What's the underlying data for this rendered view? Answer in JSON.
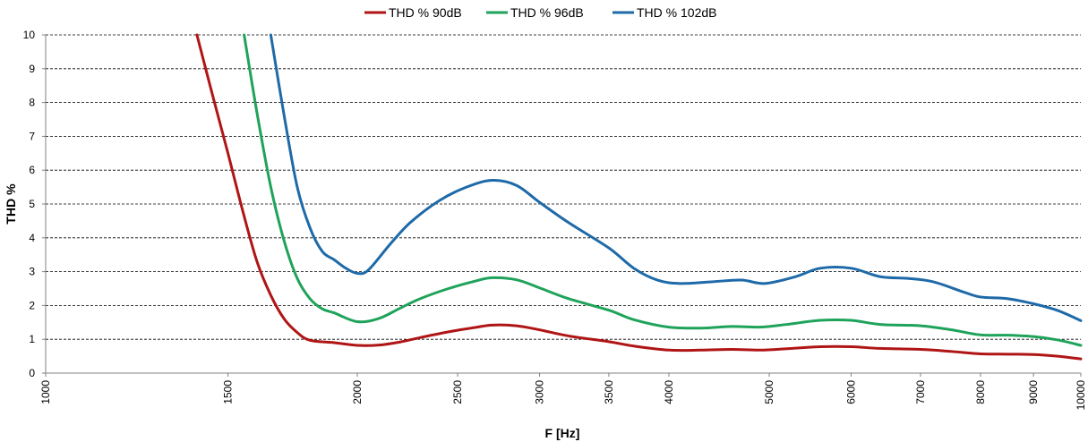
{
  "chart_data": {
    "type": "line",
    "xlabel": "F [Hz]",
    "ylabel": "THD %",
    "x_scale": "log",
    "xlim": [
      1000,
      10000
    ],
    "ylim": [
      0,
      10
    ],
    "y_ticks": [
      "0",
      "1",
      "2",
      "3",
      "4",
      "5",
      "6",
      "7",
      "8",
      "9",
      "10"
    ],
    "x_ticks": [
      {
        "value": 1000,
        "label": "1000"
      },
      {
        "value": 1500,
        "label": "1500"
      },
      {
        "value": 2000,
        "label": "2000"
      },
      {
        "value": 2500,
        "label": "2500"
      },
      {
        "value": 3000,
        "label": "3000"
      },
      {
        "value": 3500,
        "label": "3500"
      },
      {
        "value": 4000,
        "label": "4000"
      },
      {
        "value": 5000,
        "label": "5000"
      },
      {
        "value": 6000,
        "label": "6000"
      },
      {
        "value": 7000,
        "label": "7000"
      },
      {
        "value": 8000,
        "label": "8000"
      },
      {
        "value": 9000,
        "label": "9000"
      },
      {
        "value": 10000,
        "label": "10000"
      }
    ],
    "grid": {
      "horizontal": true,
      "vertical": false,
      "style": "dashed"
    },
    "legend_position": "top",
    "series": [
      {
        "name": "THD % 90dB",
        "color": "#b01515",
        "x": [
          1400,
          1450,
          1500,
          1550,
          1600,
          1650,
          1700,
          1750,
          1800,
          1900,
          2000,
          2100,
          2200,
          2300,
          2450,
          2600,
          2700,
          2850,
          3000,
          3200,
          3500,
          3700,
          4000,
          4300,
          4600,
          4900,
          5200,
          5600,
          6000,
          6400,
          7000,
          7500,
          8000,
          8500,
          9000,
          9500,
          10000
        ],
        "y": [
          10,
          8.2,
          6.5,
          4.8,
          3.3,
          2.3,
          1.6,
          1.2,
          0.97,
          0.9,
          0.82,
          0.83,
          0.92,
          1.05,
          1.22,
          1.35,
          1.42,
          1.4,
          1.28,
          1.1,
          0.93,
          0.8,
          0.68,
          0.68,
          0.7,
          0.68,
          0.72,
          0.78,
          0.78,
          0.73,
          0.7,
          0.64,
          0.57,
          0.56,
          0.55,
          0.5,
          0.42
        ]
      },
      {
        "name": "THD % 96dB",
        "color": "#1fa35a",
        "x": [
          1555,
          1600,
          1650,
          1700,
          1750,
          1800,
          1850,
          1900,
          2000,
          2100,
          2200,
          2300,
          2450,
          2600,
          2700,
          2850,
          3000,
          3200,
          3500,
          3700,
          4000,
          4300,
          4600,
          4900,
          5200,
          5600,
          6000,
          6400,
          7000,
          7500,
          8000,
          8500,
          9000,
          9500,
          10000
        ],
        "y": [
          10,
          7.7,
          5.5,
          3.9,
          2.8,
          2.2,
          1.9,
          1.78,
          1.52,
          1.62,
          1.92,
          2.2,
          2.5,
          2.72,
          2.82,
          2.76,
          2.52,
          2.2,
          1.86,
          1.58,
          1.36,
          1.33,
          1.38,
          1.36,
          1.44,
          1.56,
          1.56,
          1.44,
          1.4,
          1.28,
          1.13,
          1.12,
          1.08,
          0.98,
          0.82
        ]
      },
      {
        "name": "THD % 102dB",
        "color": "#1e6aa8",
        "x": [
          1650,
          1700,
          1750,
          1800,
          1850,
          1900,
          1950,
          2000,
          2050,
          2150,
          2250,
          2400,
          2550,
          2700,
          2850,
          3000,
          3200,
          3500,
          3700,
          3900,
          4100,
          4400,
          4700,
          4950,
          5300,
          5600,
          6000,
          6400,
          6800,
          7200,
          7700,
          8000,
          8500,
          9000,
          9500,
          10000
        ],
        "y": [
          10,
          7.6,
          5.5,
          4.3,
          3.6,
          3.35,
          3.1,
          2.95,
          3.05,
          3.8,
          4.45,
          5.1,
          5.5,
          5.7,
          5.55,
          5.05,
          4.45,
          3.7,
          3.1,
          2.75,
          2.65,
          2.7,
          2.75,
          2.65,
          2.85,
          3.1,
          3.1,
          2.85,
          2.8,
          2.7,
          2.4,
          2.25,
          2.2,
          2.05,
          1.85,
          1.55
        ]
      }
    ]
  }
}
